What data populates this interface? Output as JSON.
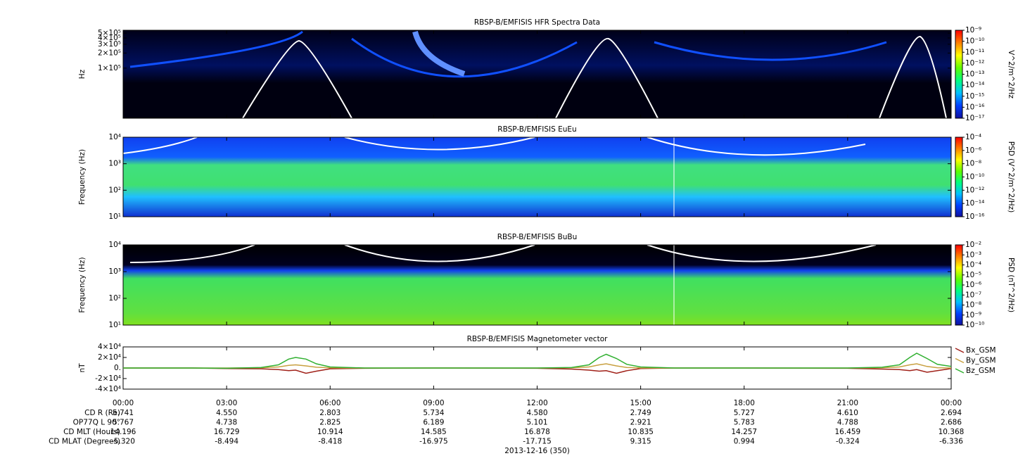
{
  "chart_data": [
    {
      "type": "spectrogram",
      "title": "RBSP-B/EMFISIS  HFR Spectra Data",
      "ylabel": "Hz",
      "log": true,
      "ylim": [
        10000,
        570000
      ],
      "yticks": [
        {
          "value": 100000,
          "label": "1×10⁵"
        },
        {
          "value": 200000,
          "label": "2×10⁵"
        },
        {
          "value": 300000,
          "label": "3×10⁵"
        },
        {
          "value": 400000,
          "label": "4×10⁵"
        },
        {
          "value": 500000,
          "label": "5×10⁵"
        }
      ],
      "colorbar": {
        "label": "V^2/m^2/Hz",
        "log": true,
        "lim": [
          1e-17,
          1e-09
        ],
        "colors": [
          "#1010a0",
          "#0040ff",
          "#00c0ff",
          "#00ff80",
          "#60ff00",
          "#ffff00",
          "#ff8000",
          "#ff0000"
        ],
        "ticks": [
          {
            "value": 1e-17,
            "label": "10⁻¹⁷"
          },
          {
            "value": 1e-16,
            "label": "10⁻¹⁶"
          },
          {
            "value": 1e-15,
            "label": "10⁻¹⁵"
          },
          {
            "value": 1e-14,
            "label": "10⁻¹⁴"
          },
          {
            "value": 1e-13,
            "label": "10⁻¹³"
          },
          {
            "value": 1e-12,
            "label": "10⁻¹²"
          },
          {
            "value": 1e-11,
            "label": "10⁻¹¹"
          },
          {
            "value": 1e-10,
            "label": "10⁻¹⁰"
          },
          {
            "value": 1e-09,
            "label": "10⁻⁹"
          }
        ]
      }
    },
    {
      "type": "spectrogram",
      "title": "RBSP-B/EMFISIS  EuEu",
      "ylabel": "Frequency (Hz)",
      "log": true,
      "ylim": [
        10,
        10000
      ],
      "yticks": [
        {
          "value": 10,
          "label": "10¹"
        },
        {
          "value": 100,
          "label": "10²"
        },
        {
          "value": 1000,
          "label": "10³"
        },
        {
          "value": 10000,
          "label": "10⁴"
        }
      ],
      "colorbar": {
        "label": "PSD (V^2/m^2/Hz)",
        "log": true,
        "lim": [
          1e-16,
          0.0001
        ],
        "colors": [
          "#1010a0",
          "#0040ff",
          "#00c0ff",
          "#00ff80",
          "#60ff00",
          "#ffff00",
          "#ff8000",
          "#ff0000"
        ],
        "ticks": [
          {
            "value": 1e-16,
            "label": "10⁻¹⁶"
          },
          {
            "value": 1e-14,
            "label": "10⁻¹⁴"
          },
          {
            "value": 1e-12,
            "label": "10⁻¹²"
          },
          {
            "value": 1e-10,
            "label": "10⁻¹⁰"
          },
          {
            "value": 1e-08,
            "label": "10⁻⁸"
          },
          {
            "value": 1e-06,
            "label": "10⁻⁶"
          },
          {
            "value": 0.0001,
            "label": "10⁻⁴"
          }
        ]
      }
    },
    {
      "type": "spectrogram",
      "title": "RBSP-B/EMFISIS  BuBu",
      "ylabel": "Frequency (Hz)",
      "log": true,
      "ylim": [
        10,
        10000
      ],
      "yticks": [
        {
          "value": 10,
          "label": "10¹"
        },
        {
          "value": 100,
          "label": "10²"
        },
        {
          "value": 1000,
          "label": "10³"
        },
        {
          "value": 10000,
          "label": "10⁴"
        }
      ],
      "colorbar": {
        "label": "PSD (nT^2/Hz)",
        "log": true,
        "lim": [
          1e-10,
          0.01
        ],
        "colors": [
          "#1010a0",
          "#0040ff",
          "#00c0ff",
          "#00ff80",
          "#60ff00",
          "#ffff00",
          "#ff8000",
          "#ff0000"
        ],
        "ticks": [
          {
            "value": 1e-10,
            "label": "10⁻¹⁰"
          },
          {
            "value": 1e-09,
            "label": "10⁻⁹"
          },
          {
            "value": 1e-08,
            "label": "10⁻⁸"
          },
          {
            "value": 1e-07,
            "label": "10⁻⁷"
          },
          {
            "value": 1e-06,
            "label": "10⁻⁶"
          },
          {
            "value": 1e-05,
            "label": "10⁻⁵"
          },
          {
            "value": 0.0001,
            "label": "10⁻⁴"
          },
          {
            "value": 0.001,
            "label": "10⁻³"
          },
          {
            "value": 0.01,
            "label": "10⁻²"
          }
        ]
      }
    },
    {
      "type": "line",
      "title": "RBSP-B/EMFISIS  Magnetometer vector",
      "ylabel": "nT",
      "xlabel": "2013-12-16 (350)",
      "ylim": [
        -40000,
        40000
      ],
      "yticks": [
        {
          "value": -40000,
          "label": "-4×10⁴"
        },
        {
          "value": -20000,
          "label": "-2×10⁴"
        },
        {
          "value": 0,
          "label": "0."
        },
        {
          "value": 20000,
          "label": "2×10⁴"
        },
        {
          "value": 40000,
          "label": "4×10⁴"
        }
      ],
      "xlim": [
        0,
        24
      ],
      "xticks": [
        {
          "value": 0,
          "label": "00:00"
        },
        {
          "value": 3,
          "label": "03:00"
        },
        {
          "value": 6,
          "label": "06:00"
        },
        {
          "value": 9,
          "label": "09:00"
        },
        {
          "value": 12,
          "label": "12:00"
        },
        {
          "value": 15,
          "label": "15:00"
        },
        {
          "value": 18,
          "label": "18:00"
        },
        {
          "value": 21,
          "label": "21:00"
        },
        {
          "value": 24,
          "label": "00:00"
        }
      ],
      "legend": "right",
      "x": [
        0,
        2,
        3,
        4,
        4.5,
        4.8,
        5.0,
        5.3,
        5.6,
        6,
        7,
        9,
        12,
        13,
        13.5,
        13.8,
        14.0,
        14.3,
        14.6,
        15,
        16,
        18,
        21,
        22,
        22.5,
        22.8,
        23.0,
        23.3,
        23.6,
        24
      ],
      "series": [
        {
          "name": "Bx_GSM",
          "color": "#a02018",
          "values": [
            0,
            0,
            -1000,
            -1500,
            -3000,
            -5000,
            -4000,
            -10000,
            -6000,
            -1500,
            -500,
            0,
            -500,
            -2000,
            -4000,
            -6000,
            -5000,
            -10000,
            -5000,
            -1000,
            0,
            0,
            -500,
            -2000,
            -3000,
            -5000,
            -3000,
            -8000,
            -5000,
            -1000
          ]
        },
        {
          "name": "By_GSM",
          "color": "#c8a040",
          "values": [
            0,
            0,
            0,
            500,
            2000,
            5000,
            6000,
            4000,
            1500,
            300,
            0,
            0,
            0,
            500,
            2000,
            6000,
            8000,
            4000,
            1000,
            200,
            0,
            0,
            0,
            500,
            2000,
            6000,
            8000,
            3000,
            500,
            0
          ]
        },
        {
          "name": "Bz_GSM",
          "color": "#30b030",
          "values": [
            0,
            0,
            -500,
            1000,
            6000,
            17000,
            20000,
            17000,
            8000,
            2000,
            0,
            0,
            0,
            1000,
            6000,
            20000,
            26000,
            18000,
            7000,
            2000,
            0,
            0,
            0,
            1500,
            6000,
            20000,
            28000,
            18000,
            7000,
            3000
          ]
        }
      ]
    }
  ],
  "ephemeris": {
    "rows": [
      {
        "label": "CD R (Re)",
        "values": [
          "5.741",
          "4.550",
          "2.803",
          "5.734",
          "4.580",
          "2.749",
          "5.727",
          "4.610",
          "2.694"
        ]
      },
      {
        "label": "OP77Q L 90°",
        "values": [
          "5.767",
          "4.738",
          "2.825",
          "6.189",
          "5.101",
          "2.921",
          "5.783",
          "4.788",
          "2.686"
        ]
      },
      {
        "label": "CD MLT (Hours)",
        "values": [
          "14.196",
          "16.729",
          "10.914",
          "14.585",
          "16.878",
          "10.835",
          "14.257",
          "16.459",
          "10.368"
        ]
      },
      {
        "label": "CD MLAT (Degrees)",
        "values": [
          "-5.320",
          "-8.494",
          "-8.418",
          "-16.975",
          "-17.715",
          "9.315",
          "0.994",
          "-0.324",
          "-6.336"
        ]
      }
    ]
  }
}
